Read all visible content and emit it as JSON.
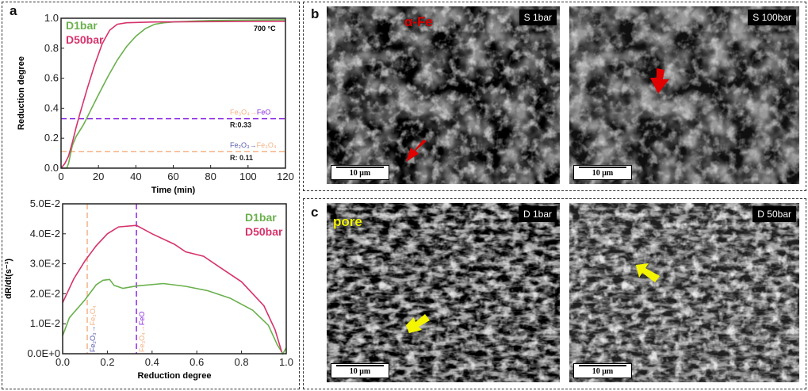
{
  "panels": {
    "a": "a",
    "b": "b",
    "c": "c"
  },
  "chart_data": [
    {
      "type": "line",
      "xlabel": "Time (min)",
      "ylabel": "Reduction degree",
      "xlim": [
        0,
        120
      ],
      "ylim": [
        0,
        1.0
      ],
      "xticks": [
        "0",
        "20",
        "40",
        "60",
        "80",
        "100",
        "120"
      ],
      "yticks": [
        "0.0",
        "0.2",
        "0.4",
        "0.6",
        "0.8",
        "1.0"
      ],
      "annotation": "700 °C",
      "legend": "top-left",
      "hlines": [
        {
          "y": 0.33,
          "color": "#8a2be2",
          "label_from": "Fe₃O₄",
          "label_to": "FeO",
          "r_label": "R:0.33"
        },
        {
          "y": 0.11,
          "color": "#f4b183",
          "label_from": "Fe₂O₃",
          "label_to": "Fe₃O₄",
          "r_label": "R: 0.11"
        }
      ],
      "series": [
        {
          "name": "D1bar",
          "color": "#6ab04c",
          "x": [
            0,
            3,
            4,
            6,
            8,
            12,
            16,
            20,
            25,
            30,
            35,
            40,
            45,
            50,
            55,
            60,
            80,
            120
          ],
          "y": [
            0,
            0,
            0.03,
            0.15,
            0.21,
            0.29,
            0.39,
            0.49,
            0.61,
            0.72,
            0.81,
            0.88,
            0.93,
            0.96,
            0.97,
            0.975,
            0.985,
            0.99
          ]
        },
        {
          "name": "D50bar",
          "color": "#d6336c",
          "x": [
            0,
            2,
            4,
            6,
            8,
            10,
            14,
            18,
            22,
            26,
            30,
            35,
            50,
            120
          ],
          "y": [
            0,
            0.03,
            0.08,
            0.17,
            0.27,
            0.36,
            0.53,
            0.69,
            0.83,
            0.92,
            0.96,
            0.97,
            0.975,
            0.98
          ]
        }
      ]
    },
    {
      "type": "line",
      "xlabel": "Reduction degree",
      "ylabel": "dR/dt(s⁻¹)",
      "xlim": [
        0,
        1.0
      ],
      "ylim": [
        0,
        0.05
      ],
      "xticks": [
        "0.0",
        "0.2",
        "0.4",
        "0.6",
        "0.8",
        "1.0"
      ],
      "yticks": [
        "0.0E+0",
        "1.0E-2",
        "2.0E-2",
        "3.0E-2",
        "4.0E-2",
        "5.0E-2"
      ],
      "legend": "top-right",
      "vlines": [
        {
          "x": 0.11,
          "color": "#f4b183",
          "label_from": "Fe₂O₃",
          "label_to": "Fe₃O₄"
        },
        {
          "x": 0.33,
          "color": "#8a2be2",
          "label_from": "Fe₃O₄",
          "label_to": "FeO"
        }
      ],
      "series": [
        {
          "name": "D1bar",
          "color": "#6ab04c",
          "x": [
            0,
            0.03,
            0.1,
            0.15,
            0.18,
            0.21,
            0.23,
            0.27,
            0.33,
            0.45,
            0.55,
            0.65,
            0.75,
            0.85,
            0.92,
            0.96,
            0.985,
            1.0
          ],
          "y": [
            0.006,
            0.012,
            0.018,
            0.023,
            0.0245,
            0.0248,
            0.0228,
            0.0218,
            0.0226,
            0.0234,
            0.0225,
            0.021,
            0.0185,
            0.0145,
            0.0095,
            0.003,
            0,
            0.002
          ]
        },
        {
          "name": "D50bar",
          "color": "#d6336c",
          "x": [
            0,
            0.05,
            0.1,
            0.15,
            0.2,
            0.25,
            0.33,
            0.4,
            0.5,
            0.55,
            0.63,
            0.7,
            0.8,
            0.9,
            0.95,
            0.98
          ],
          "y": [
            0.017,
            0.025,
            0.031,
            0.036,
            0.04,
            0.0423,
            0.0428,
            0.04,
            0.0365,
            0.034,
            0.0325,
            0.029,
            0.024,
            0.016,
            0.008,
            0.0005
          ]
        }
      ]
    }
  ],
  "micrographs": [
    {
      "tag": "S 1bar",
      "scale": "10 μm",
      "annotation": "α-Fe",
      "annotation_color": "#e00000",
      "arrow_color": "#e00000"
    },
    {
      "tag": "S 100bar",
      "scale": "10 μm",
      "arrow_color": "#e00000"
    },
    {
      "tag": "D 1bar",
      "scale": "10 μm",
      "annotation": "pore",
      "annotation_color": "#f5f500",
      "arrow_color": "#f5f500"
    },
    {
      "tag": "D 50bar",
      "scale": "10 μm",
      "arrow_color": "#f5f500"
    }
  ]
}
